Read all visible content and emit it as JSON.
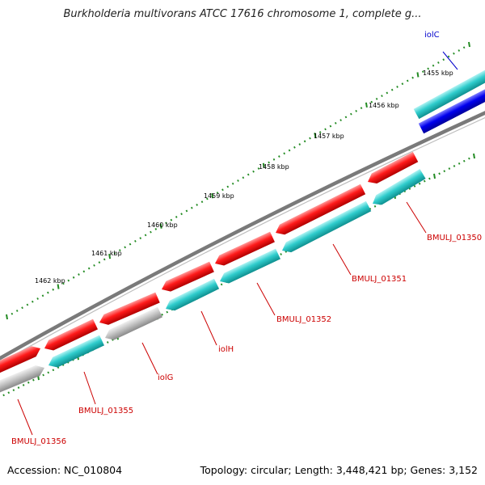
{
  "title": "Burkholderia multivorans ATCC 17616 chromosome 1, complete g...",
  "footer": {
    "accession": "Accession: NC_010804",
    "summary": "Topology: circular; Length: 3,448,421 bp; Genes: 3,152"
  },
  "colors": {
    "backbone": "#888888",
    "forward_gene": "#ff0000",
    "reverse_gene": "#33cccc",
    "reverse_gene_gray": "#bbbbbb",
    "highlight_gene": "#0000ee",
    "tick": "#228b22",
    "label_red": "#cc0000",
    "label_blue": "#0000cc"
  },
  "scale_labels": [
    "1455 kbp",
    "1456 kbp",
    "1457 kbp",
    "1458 kbp",
    "1459 kbp",
    "1460 kbp",
    "1461 kbp",
    "1462 kbp"
  ],
  "genes": [
    {
      "name": "iolC",
      "strand": "forward",
      "color": "cyan"
    },
    {
      "name": "iolC-blue",
      "strand": "reverse",
      "color": "blue"
    },
    {
      "name": "BMULJ_01350",
      "strand": "reverse",
      "color": "cyan"
    },
    {
      "name": "BMULJ_01351",
      "strand": "reverse",
      "color": "cyan"
    },
    {
      "name": "BMULJ_01352",
      "strand": "reverse",
      "color": "cyan"
    },
    {
      "name": "iolH",
      "strand": "reverse",
      "color": "cyan"
    },
    {
      "name": "iolG",
      "strand": "reverse",
      "color": "gray"
    },
    {
      "name": "BMULJ_01355",
      "strand": "reverse",
      "color": "cyan"
    },
    {
      "name": "BMULJ_01356",
      "strand": "reverse",
      "color": "gray"
    }
  ],
  "gene_labels": [
    {
      "text": "iolC",
      "color": "blue"
    },
    {
      "text": "BMULJ_01350",
      "color": "red"
    },
    {
      "text": "BMULJ_01351",
      "color": "red"
    },
    {
      "text": "BMULJ_01352",
      "color": "red"
    },
    {
      "text": "iolH",
      "color": "red"
    },
    {
      "text": "iolG",
      "color": "red"
    },
    {
      "text": "BMULJ_01355",
      "color": "red"
    },
    {
      "text": "BMULJ_01356",
      "color": "red"
    }
  ]
}
